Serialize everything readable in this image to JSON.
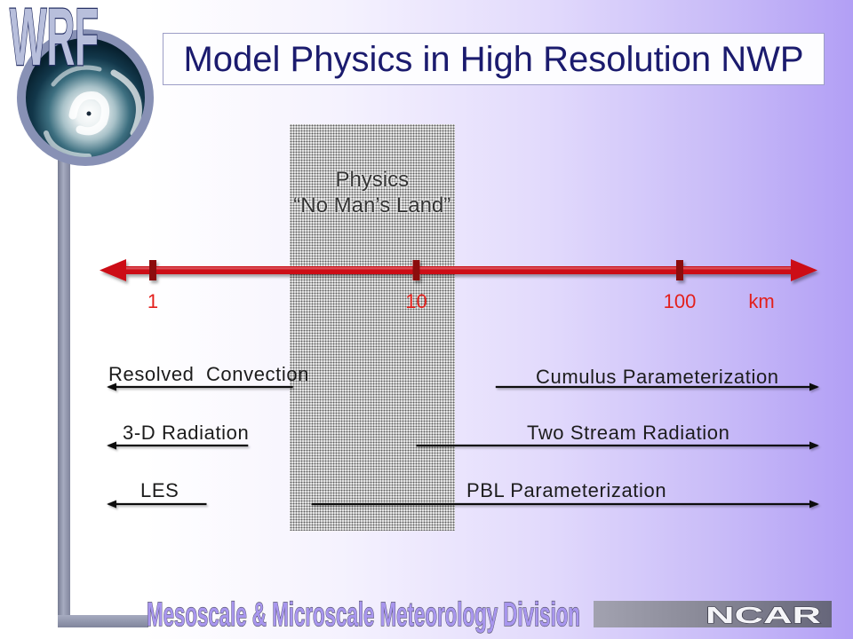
{
  "logo": {
    "text": "WRF",
    "icon": "hurricane-satellite-globe"
  },
  "title": "Model Physics in High Resolution NWP",
  "gap_region": {
    "line1": "Physics",
    "line2": "“No Man’s Land”",
    "range_km": [
      3.3,
      14
    ]
  },
  "axis": {
    "ticks": [
      "1",
      "10",
      "100"
    ],
    "unit": "km",
    "scale": "log"
  },
  "left_processes": [
    {
      "label": "Resolved  Convection",
      "up_to_km": 3.4
    },
    {
      "label": "3-D Radiation",
      "up_to_km": 2.3
    },
    {
      "label": "LES",
      "up_to_km": 1.6
    }
  ],
  "right_processes": [
    {
      "label": "Cumulus Parameterization",
      "from_km": 20
    },
    {
      "label": "Two Stream Radiation",
      "from_km": 10
    },
    {
      "label": "PBL Parameterization",
      "from_km": 4
    }
  ],
  "footer": {
    "division": "Mesoscale & Microscale Meteorology Division",
    "organization": "NCAR"
  },
  "colors": {
    "title_text": "#1b1b6e",
    "axis": "#cc1118",
    "axis_ticks": "#8c0a10",
    "tick_labels": "#e3201c",
    "arrows": "#111111",
    "background_right": "#b29ff5"
  }
}
